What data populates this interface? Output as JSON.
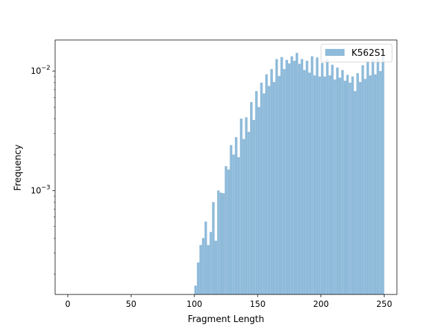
{
  "chart_data": {
    "type": "bar",
    "subtype": "histogram",
    "xlabel": "Fragment Length",
    "ylabel": "Frequency",
    "xlim": [
      -10,
      260
    ],
    "ylim": [
      0.000135,
      0.0182
    ],
    "yscale": "log",
    "grid": false,
    "legend_position": "top-right",
    "bin_width": 2,
    "x_ticks": [
      {
        "value": 0,
        "label": "0"
      },
      {
        "value": 50,
        "label": "50"
      },
      {
        "value": 100,
        "label": "100"
      },
      {
        "value": 150,
        "label": "150"
      },
      {
        "value": 200,
        "label": "200"
      },
      {
        "value": 250,
        "label": "250"
      }
    ],
    "y_ticks": [
      {
        "value": 0.001,
        "base": "10",
        "exp": "−3"
      },
      {
        "value": 0.01,
        "base": "10",
        "exp": "−2"
      }
    ],
    "series": [
      {
        "name": "K562S1",
        "color": "#8fbbda",
        "bin_starts": [
          100,
          102,
          104,
          106,
          108,
          110,
          112,
          114,
          116,
          118,
          120,
          122,
          124,
          126,
          128,
          130,
          132,
          134,
          136,
          138,
          140,
          142,
          144,
          146,
          148,
          150,
          152,
          154,
          156,
          158,
          160,
          162,
          164,
          166,
          168,
          170,
          172,
          174,
          176,
          178,
          180,
          182,
          184,
          186,
          188,
          190,
          192,
          194,
          196,
          198,
          200,
          202,
          204,
          206,
          208,
          210,
          212,
          214,
          216,
          218,
          220,
          222,
          224,
          226,
          228,
          230,
          232,
          234,
          236,
          238,
          240,
          242,
          244,
          246,
          248
        ],
        "values": [
          0.00016,
          0.00025,
          0.00035,
          0.0004,
          0.00055,
          0.00035,
          0.00045,
          0.0008,
          0.00038,
          0.001,
          0.00096,
          0.00095,
          0.0016,
          0.0015,
          0.0024,
          0.002,
          0.0028,
          0.0019,
          0.004,
          0.0027,
          0.0041,
          0.0031,
          0.0055,
          0.0039,
          0.0068,
          0.005,
          0.008,
          0.0065,
          0.0094,
          0.0075,
          0.0104,
          0.0081,
          0.0126,
          0.0091,
          0.0131,
          0.0104,
          0.0124,
          0.0116,
          0.0133,
          0.0122,
          0.0142,
          0.0115,
          0.0126,
          0.0102,
          0.0122,
          0.0097,
          0.0133,
          0.0092,
          0.013,
          0.009,
          0.0117,
          0.009,
          0.0125,
          0.0092,
          0.0113,
          0.0085,
          0.0107,
          0.0088,
          0.0102,
          0.0083,
          0.0093,
          0.008,
          0.009,
          0.0068,
          0.0096,
          0.0081,
          0.0112,
          0.0086,
          0.0121,
          0.0092,
          0.0125,
          0.0094,
          0.0127,
          0.01,
          0.0135
        ]
      }
    ]
  }
}
